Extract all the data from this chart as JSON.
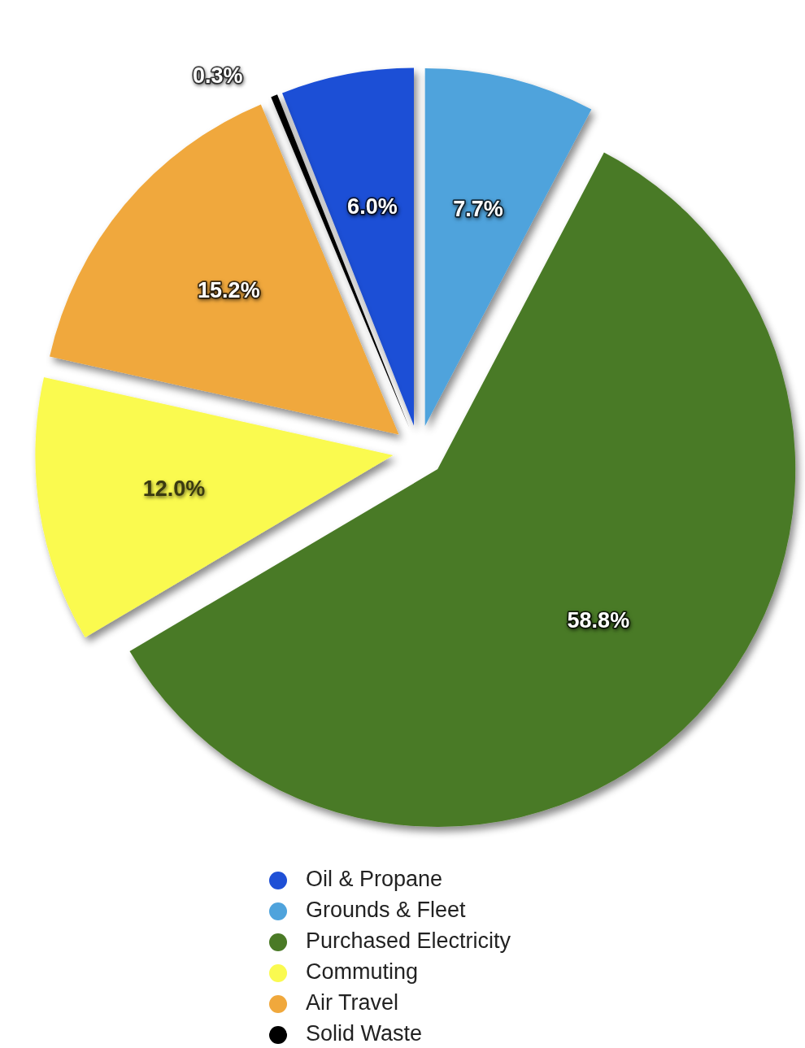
{
  "chart_data": {
    "type": "pie",
    "categories": [
      "Oil & Propane",
      "Grounds & Fleet",
      "Purchased Electricity",
      "Commuting",
      "Air Travel",
      "Solid Waste"
    ],
    "values": [
      6.0,
      7.7,
      58.8,
      12.0,
      15.2,
      0.3
    ],
    "colors": [
      "#1f50d6",
      "#4fa3dc",
      "#4a7a26",
      "#fafa50",
      "#f0a83c",
      "#000000"
    ],
    "value_labels": [
      "6.0%",
      "7.7%",
      "58.8%",
      "12.0%",
      "15.2%",
      "0.3%"
    ],
    "legend": "bottom"
  }
}
